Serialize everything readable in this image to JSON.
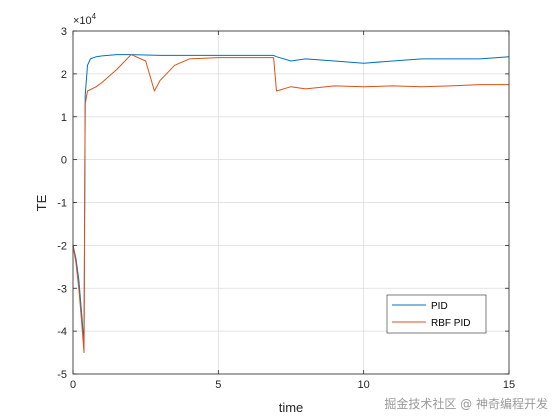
{
  "chart_data": {
    "type": "line",
    "title": "",
    "xlabel": "time",
    "ylabel": "TE",
    "y_multiplier_label": "×10",
    "y_multiplier_exponent": "4",
    "xlim": [
      0,
      15
    ],
    "ylim": [
      -5,
      3
    ],
    "x_ticks": [
      0,
      5,
      10,
      15
    ],
    "y_ticks": [
      -5,
      -4,
      -3,
      -2,
      -1,
      0,
      1,
      2,
      3
    ],
    "grid": true,
    "legend_position": "lower-right",
    "series": [
      {
        "name": "PID",
        "color": "#0072BD",
        "x": [
          0,
          0.1,
          0.2,
          0.3,
          0.38,
          0.42,
          0.5,
          0.6,
          0.8,
          1.0,
          1.5,
          2.0,
          3.0,
          4.0,
          5.0,
          6.0,
          6.9,
          7.0,
          7.5,
          8.0,
          9.0,
          10.0,
          11.0,
          12.0,
          13.0,
          14.0,
          15.0
        ],
        "y": [
          -2.0,
          -2.3,
          -2.8,
          -3.6,
          -4.3,
          1.5,
          2.2,
          2.35,
          2.4,
          2.42,
          2.45,
          2.45,
          2.43,
          2.43,
          2.43,
          2.43,
          2.43,
          2.4,
          2.3,
          2.35,
          2.3,
          2.25,
          2.3,
          2.35,
          2.35,
          2.35,
          2.4
        ]
      },
      {
        "name": "RBF PID",
        "color": "#D95319",
        "x": [
          0,
          0.1,
          0.2,
          0.3,
          0.38,
          0.42,
          0.5,
          0.8,
          1.0,
          1.5,
          2.0,
          2.5,
          2.8,
          3.0,
          3.5,
          4.0,
          5.0,
          6.0,
          6.9,
          7.0,
          7.5,
          8.0,
          9.0,
          10.0,
          11.0,
          12.0,
          13.0,
          14.0,
          15.0
        ],
        "y": [
          -2.0,
          -2.4,
          -3.0,
          -3.8,
          -4.5,
          1.3,
          1.6,
          1.7,
          1.8,
          2.1,
          2.45,
          2.3,
          1.6,
          1.85,
          2.2,
          2.35,
          2.38,
          2.38,
          2.38,
          1.6,
          1.7,
          1.65,
          1.72,
          1.7,
          1.72,
          1.7,
          1.72,
          1.75,
          1.75
        ]
      }
    ]
  },
  "watermark": "掘金技术社区 @ 神奇编程开发"
}
